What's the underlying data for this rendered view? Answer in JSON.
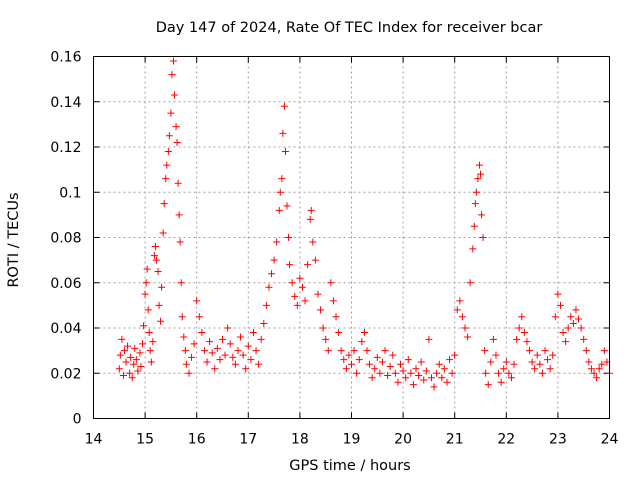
{
  "chart_data": {
    "type": "scatter",
    "title": "Day 147 of 2024, Rate Of TEC Index for receiver bcar",
    "xlabel": "GPS time / hours",
    "ylabel": "ROTI / TECUs",
    "xlim": [
      14,
      24
    ],
    "ylim": [
      0,
      0.16
    ],
    "x_ticks": [
      14,
      15,
      16,
      17,
      18,
      19,
      20,
      21,
      22,
      23,
      24
    ],
    "x_tick_labels": [
      "14",
      "15",
      "16",
      "17",
      "18",
      "19",
      "20",
      "21",
      "22",
      "23",
      "24"
    ],
    "y_ticks": [
      0,
      0.02,
      0.04,
      0.06,
      0.08,
      0.1,
      0.12,
      0.14,
      0.16
    ],
    "y_tick_labels": [
      "0",
      "0.02",
      "0.04",
      "0.06",
      "0.08",
      "0.1",
      "0.12",
      "0.14",
      "0.16"
    ],
    "grid": true,
    "marker": "+",
    "color": "#ff0000",
    "series": [
      {
        "name": "ROTI",
        "points": [
          [
            14.5,
            0.022
          ],
          [
            14.52,
            0.028
          ],
          [
            14.55,
            0.035
          ],
          [
            14.58,
            0.019
          ],
          [
            14.6,
            0.03
          ],
          [
            14.63,
            0.025
          ],
          [
            14.66,
            0.032
          ],
          [
            14.7,
            0.02
          ],
          [
            14.72,
            0.027
          ],
          [
            14.75,
            0.018
          ],
          [
            14.78,
            0.024
          ],
          [
            14.8,
            0.031
          ],
          [
            14.83,
            0.026
          ],
          [
            14.86,
            0.021
          ],
          [
            14.9,
            0.029
          ],
          [
            14.92,
            0.023
          ],
          [
            14.95,
            0.033
          ],
          [
            14.97,
            0.041
          ],
          [
            15.0,
            0.055
          ],
          [
            15.02,
            0.06
          ],
          [
            15.04,
            0.066
          ],
          [
            15.06,
            0.048
          ],
          [
            15.08,
            0.038
          ],
          [
            15.1,
            0.03
          ],
          [
            15.12,
            0.025
          ],
          [
            15.15,
            0.034
          ],
          [
            15.18,
            0.072
          ],
          [
            15.2,
            0.076
          ],
          [
            15.22,
            0.07
          ],
          [
            15.25,
            0.065
          ],
          [
            15.27,
            0.05
          ],
          [
            15.3,
            0.043
          ],
          [
            15.32,
            0.058
          ],
          [
            15.35,
            0.082
          ],
          [
            15.37,
            0.095
          ],
          [
            15.4,
            0.106
          ],
          [
            15.42,
            0.112
          ],
          [
            15.45,
            0.118
          ],
          [
            15.47,
            0.125
          ],
          [
            15.5,
            0.135
          ],
          [
            15.52,
            0.152
          ],
          [
            15.55,
            0.158
          ],
          [
            15.57,
            0.143
          ],
          [
            15.6,
            0.129
          ],
          [
            15.62,
            0.122
          ],
          [
            15.64,
            0.104
          ],
          [
            15.66,
            0.09
          ],
          [
            15.68,
            0.078
          ],
          [
            15.7,
            0.06
          ],
          [
            15.72,
            0.045
          ],
          [
            15.75,
            0.036
          ],
          [
            15.78,
            0.03
          ],
          [
            15.8,
            0.024
          ],
          [
            15.85,
            0.02
          ],
          [
            15.9,
            0.027
          ],
          [
            15.95,
            0.033
          ],
          [
            16.0,
            0.052
          ],
          [
            16.05,
            0.045
          ],
          [
            16.1,
            0.038
          ],
          [
            16.15,
            0.03
          ],
          [
            16.2,
            0.025
          ],
          [
            16.25,
            0.034
          ],
          [
            16.3,
            0.029
          ],
          [
            16.35,
            0.022
          ],
          [
            16.4,
            0.031
          ],
          [
            16.45,
            0.026
          ],
          [
            16.5,
            0.035
          ],
          [
            16.55,
            0.028
          ],
          [
            16.6,
            0.04
          ],
          [
            16.65,
            0.033
          ],
          [
            16.7,
            0.027
          ],
          [
            16.75,
            0.024
          ],
          [
            16.8,
            0.03
          ],
          [
            16.85,
            0.036
          ],
          [
            16.9,
            0.028
          ],
          [
            16.95,
            0.022
          ],
          [
            17.0,
            0.032
          ],
          [
            17.05,
            0.026
          ],
          [
            17.1,
            0.038
          ],
          [
            17.15,
            0.03
          ],
          [
            17.2,
            0.024
          ],
          [
            17.25,
            0.035
          ],
          [
            17.3,
            0.042
          ],
          [
            17.35,
            0.05
          ],
          [
            17.4,
            0.058
          ],
          [
            17.45,
            0.064
          ],
          [
            17.5,
            0.07
          ],
          [
            17.55,
            0.078
          ],
          [
            17.6,
            0.092
          ],
          [
            17.62,
            0.1
          ],
          [
            17.65,
            0.106
          ],
          [
            17.67,
            0.126
          ],
          [
            17.7,
            0.138
          ],
          [
            17.72,
            0.118
          ],
          [
            17.75,
            0.094
          ],
          [
            17.78,
            0.08
          ],
          [
            17.8,
            0.068
          ],
          [
            17.85,
            0.06
          ],
          [
            17.9,
            0.054
          ],
          [
            17.95,
            0.05
          ],
          [
            18.0,
            0.062
          ],
          [
            18.05,
            0.058
          ],
          [
            18.1,
            0.052
          ],
          [
            18.15,
            0.068
          ],
          [
            18.2,
            0.088
          ],
          [
            18.22,
            0.092
          ],
          [
            18.25,
            0.078
          ],
          [
            18.3,
            0.07
          ],
          [
            18.35,
            0.055
          ],
          [
            18.4,
            0.048
          ],
          [
            18.45,
            0.04
          ],
          [
            18.5,
            0.035
          ],
          [
            18.55,
            0.03
          ],
          [
            18.6,
            0.06
          ],
          [
            18.65,
            0.052
          ],
          [
            18.7,
            0.045
          ],
          [
            18.75,
            0.038
          ],
          [
            18.8,
            0.03
          ],
          [
            18.85,
            0.026
          ],
          [
            18.9,
            0.022
          ],
          [
            18.95,
            0.028
          ],
          [
            19.0,
            0.024
          ],
          [
            19.05,
            0.03
          ],
          [
            19.1,
            0.02
          ],
          [
            19.15,
            0.026
          ],
          [
            19.2,
            0.034
          ],
          [
            19.25,
            0.038
          ],
          [
            19.3,
            0.03
          ],
          [
            19.35,
            0.024
          ],
          [
            19.4,
            0.018
          ],
          [
            19.45,
            0.022
          ],
          [
            19.5,
            0.027
          ],
          [
            19.55,
            0.02
          ],
          [
            19.6,
            0.025
          ],
          [
            19.65,
            0.03
          ],
          [
            19.7,
            0.019
          ],
          [
            19.75,
            0.023
          ],
          [
            19.8,
            0.028
          ],
          [
            19.85,
            0.02
          ],
          [
            19.9,
            0.016
          ],
          [
            19.95,
            0.024
          ],
          [
            20.0,
            0.021
          ],
          [
            20.05,
            0.018
          ],
          [
            20.1,
            0.026
          ],
          [
            20.15,
            0.02
          ],
          [
            20.2,
            0.015
          ],
          [
            20.25,
            0.022
          ],
          [
            20.3,
            0.019
          ],
          [
            20.35,
            0.025
          ],
          [
            20.4,
            0.017
          ],
          [
            20.45,
            0.021
          ],
          [
            20.5,
            0.035
          ],
          [
            20.55,
            0.018
          ],
          [
            20.6,
            0.014
          ],
          [
            20.65,
            0.02
          ],
          [
            20.7,
            0.024
          ],
          [
            20.75,
            0.018
          ],
          [
            20.8,
            0.022
          ],
          [
            20.85,
            0.016
          ],
          [
            20.9,
            0.026
          ],
          [
            20.95,
            0.02
          ],
          [
            21.0,
            0.028
          ],
          [
            21.05,
            0.048
          ],
          [
            21.1,
            0.052
          ],
          [
            21.15,
            0.045
          ],
          [
            21.2,
            0.04
          ],
          [
            21.25,
            0.036
          ],
          [
            21.3,
            0.06
          ],
          [
            21.35,
            0.075
          ],
          [
            21.38,
            0.085
          ],
          [
            21.4,
            0.095
          ],
          [
            21.42,
            0.1
          ],
          [
            21.45,
            0.106
          ],
          [
            21.48,
            0.112
          ],
          [
            21.5,
            0.108
          ],
          [
            21.52,
            0.09
          ],
          [
            21.55,
            0.08
          ],
          [
            21.58,
            0.03
          ],
          [
            21.6,
            0.02
          ],
          [
            21.65,
            0.015
          ],
          [
            21.7,
            0.025
          ],
          [
            21.75,
            0.035
          ],
          [
            21.8,
            0.028
          ],
          [
            21.85,
            0.02
          ],
          [
            21.9,
            0.016
          ],
          [
            21.95,
            0.022
          ],
          [
            22.0,
            0.025
          ],
          [
            22.05,
            0.02
          ],
          [
            22.1,
            0.018
          ],
          [
            22.15,
            0.024
          ],
          [
            22.2,
            0.035
          ],
          [
            22.25,
            0.04
          ],
          [
            22.3,
            0.045
          ],
          [
            22.35,
            0.038
          ],
          [
            22.4,
            0.034
          ],
          [
            22.45,
            0.03
          ],
          [
            22.5,
            0.025
          ],
          [
            22.55,
            0.022
          ],
          [
            22.6,
            0.028
          ],
          [
            22.65,
            0.024
          ],
          [
            22.7,
            0.02
          ],
          [
            22.75,
            0.03
          ],
          [
            22.8,
            0.026
          ],
          [
            22.85,
            0.022
          ],
          [
            22.9,
            0.028
          ],
          [
            22.95,
            0.045
          ],
          [
            23.0,
            0.055
          ],
          [
            23.05,
            0.05
          ],
          [
            23.1,
            0.038
          ],
          [
            23.15,
            0.034
          ],
          [
            23.2,
            0.04
          ],
          [
            23.25,
            0.045
          ],
          [
            23.3,
            0.042
          ],
          [
            23.35,
            0.048
          ],
          [
            23.4,
            0.044
          ],
          [
            23.45,
            0.04
          ],
          [
            23.5,
            0.035
          ],
          [
            23.55,
            0.03
          ],
          [
            23.6,
            0.025
          ],
          [
            23.65,
            0.022
          ],
          [
            23.7,
            0.02
          ],
          [
            23.75,
            0.018
          ],
          [
            23.8,
            0.022
          ],
          [
            23.85,
            0.024
          ],
          [
            23.9,
            0.03
          ],
          [
            23.95,
            0.025
          ],
          [
            24.0,
            0.02
          ]
        ]
      }
    ]
  }
}
